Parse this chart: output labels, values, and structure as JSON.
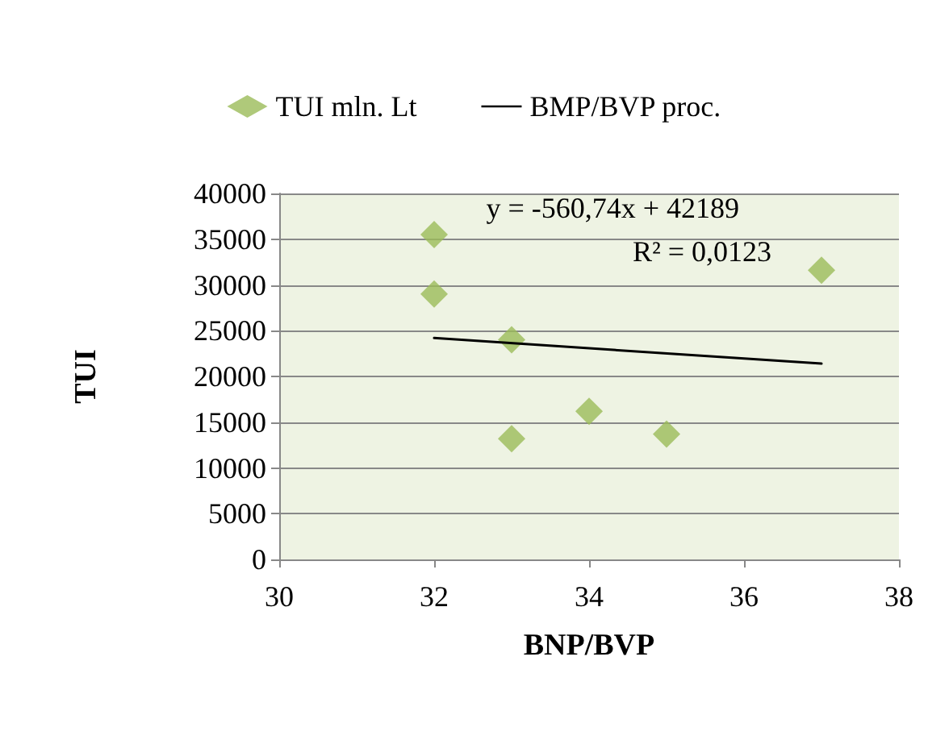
{
  "chart_data": {
    "type": "scatter",
    "xlabel": "BNP/BVP",
    "ylabel": "TUI",
    "annotations": [
      "y = -560,74x + 42189",
      "R² = 0,0123"
    ],
    "series": [
      {
        "name": "TUI mln. Lt",
        "color": "#9bbb59",
        "marker": "diamond",
        "x": [
          32,
          32,
          33,
          33,
          34,
          35,
          37
        ],
        "values": [
          35500,
          29000,
          24000,
          13200,
          16200,
          13700,
          31600
        ]
      },
      {
        "name": "BMP/BVP proc.",
        "type": "line",
        "color": "#000000",
        "marker": "none",
        "line_style": "solid",
        "x": [
          32,
          37
        ],
        "values": [
          24200,
          21400
        ]
      }
    ],
    "xlim": [
      30,
      38
    ],
    "xticks": [
      30,
      32,
      34,
      36,
      38
    ],
    "ylim": [
      0,
      40000
    ],
    "yticks": [
      0,
      5000,
      10000,
      15000,
      20000,
      25000,
      30000,
      35000,
      40000
    ],
    "grid": "y",
    "legend": "top"
  }
}
